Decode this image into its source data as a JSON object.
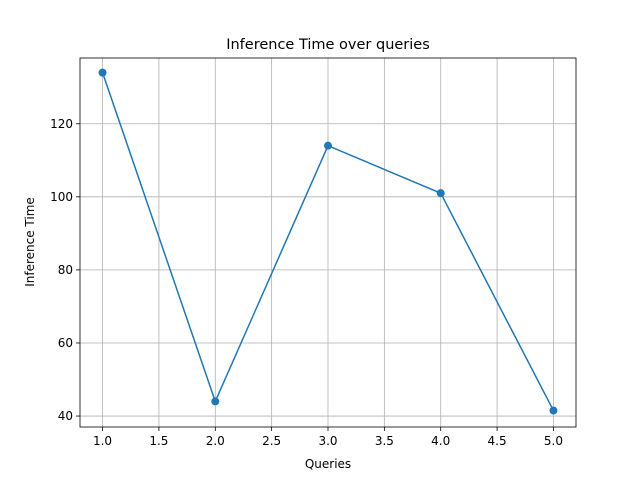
{
  "chart_data": {
    "type": "line",
    "title": "Inference Time over queries",
    "xlabel": "Queries",
    "ylabel": "Inference Time",
    "x": [
      1,
      2,
      3,
      4,
      5
    ],
    "series": [
      {
        "values": [
          134,
          44,
          114,
          101,
          41.5
        ],
        "color": "#1f77b4",
        "marker": "circle"
      }
    ],
    "xlim": [
      0.8,
      5.2
    ],
    "ylim": [
      37,
      138
    ],
    "xticks": [
      1.0,
      1.5,
      2.0,
      2.5,
      3.0,
      3.5,
      4.0,
      4.5,
      5.0
    ],
    "xtick_labels": [
      "1.0",
      "1.5",
      "2.0",
      "2.5",
      "3.0",
      "3.5",
      "4.0",
      "4.5",
      "5.0"
    ],
    "yticks": [
      40,
      60,
      80,
      100,
      120
    ],
    "ytick_labels": [
      "40",
      "60",
      "80",
      "100",
      "120"
    ],
    "grid": true,
    "legend": false
  }
}
